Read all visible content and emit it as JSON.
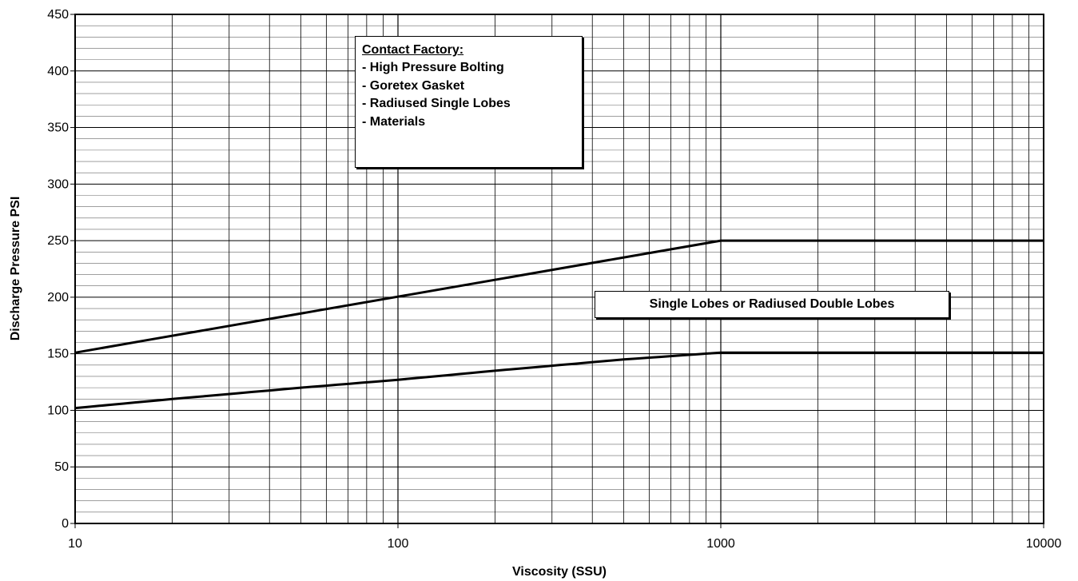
{
  "chart_data": {
    "type": "line",
    "title": "",
    "xlabel": "Viscosity (SSU)",
    "ylabel": "Discharge Pressure PSI",
    "xscale": "log",
    "xlim": [
      10,
      10000
    ],
    "ylim": [
      0,
      450
    ],
    "x_ticks": [
      "10",
      "100",
      "1000",
      "10000"
    ],
    "y_ticks": [
      "0",
      "50",
      "100",
      "150",
      "200",
      "250",
      "300",
      "350",
      "400",
      "450"
    ],
    "grid": true,
    "series": [
      {
        "x": [
          10,
          1000,
          10000
        ],
        "y": [
          151,
          250,
          250
        ],
        "color": "#000000"
      },
      {
        "x": [
          10,
          20,
          50,
          100,
          200,
          500,
          1000,
          10000
        ],
        "y": [
          102,
          110,
          120,
          127,
          135,
          145,
          151,
          151
        ],
        "color": "#000000"
      }
    ],
    "annotations": {
      "contact_factory": {
        "heading": "Contact Factory:",
        "items": [
          "- High Pressure Bolting",
          "- Goretex Gasket",
          "- Radiused Single Lobes",
          "- Materials"
        ]
      },
      "region_label": "Single Lobes or Radiused Double Lobes"
    }
  }
}
